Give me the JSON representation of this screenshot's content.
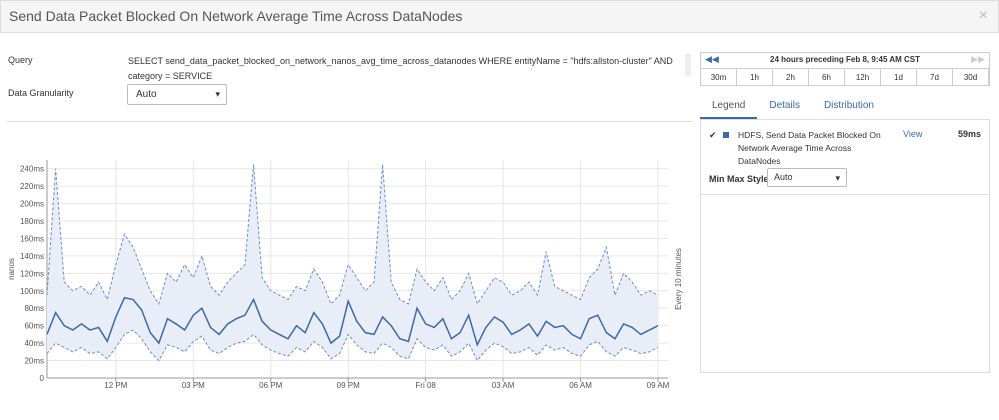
{
  "header": {
    "title": "Send Data Packet Blocked On Network Average Time Across DataNodes",
    "close": "×"
  },
  "query": {
    "label": "Query",
    "text": "SELECT send_data_packet_blocked_on_network_nanos_avg_time_across_datanodes WHERE entityName = \"hdfs:allston-cluster\" AND category = SERVICE"
  },
  "granularity": {
    "label": "Data Granularity",
    "value": "Auto"
  },
  "time_range": {
    "label": "24 hours preceding Feb 8, 9:45 AM CST",
    "buttons": [
      "30m",
      "1h",
      "2h",
      "6h",
      "12h",
      "1d",
      "7d",
      "30d"
    ]
  },
  "tabs": [
    "Legend",
    "Details",
    "Distribution"
  ],
  "legend": {
    "link": "View",
    "value": {
      "value": 59,
      "label": "59ms"
    },
    "style_label": "Min Max Style:",
    "style_value": "Auto"
  },
  "chart_data": {
    "type": "line",
    "y_label": "nanos",
    "y2_label": "Every 10 minutes",
    "categories": [
      null,
      null,
      null,
      null,
      null,
      null,
      null,
      null,
      "12 PM",
      null,
      null,
      null,
      null,
      null,
      null,
      null,
      null,
      "03 PM",
      null,
      null,
      null,
      null,
      null,
      null,
      null,
      null,
      "06 PM",
      null,
      null,
      null,
      null,
      null,
      null,
      null,
      null,
      "09 PM",
      null,
      null,
      null,
      null,
      null,
      null,
      null,
      null,
      "Fri 08",
      null,
      null,
      null,
      null,
      null,
      null,
      null,
      null,
      "03 AM",
      null,
      null,
      null,
      null,
      null,
      null,
      null,
      null,
      "06 AM",
      null,
      null,
      null,
      null,
      null,
      null,
      null,
      null,
      "09 AM"
    ],
    "series": [
      {
        "name": "HDFS, Send Data Packet Blocked On Network Average Time Across DataNodes",
        "color": "#3a6aa8",
        "values": [
          50,
          75,
          60,
          55,
          62,
          55,
          58,
          42,
          70,
          92,
          90,
          78,
          52,
          40,
          68,
          62,
          55,
          72,
          80,
          58,
          50,
          62,
          68,
          72,
          90,
          65,
          55,
          50,
          45,
          60,
          52,
          75,
          62,
          40,
          48,
          88,
          65,
          52,
          50,
          70,
          60,
          45,
          42,
          80,
          62,
          58,
          68,
          45,
          52,
          72,
          38,
          58,
          70,
          64,
          50,
          55,
          62,
          48,
          65,
          58,
          60,
          50,
          45,
          68,
          72,
          52,
          45,
          62,
          58,
          50,
          55,
          60
        ],
        "max": [
          95,
          240,
          110,
          100,
          105,
          95,
          110,
          90,
          130,
          165,
          150,
          125,
          100,
          85,
          120,
          110,
          130,
          115,
          140,
          105,
          95,
          110,
          120,
          130,
          245,
          115,
          100,
          95,
          90,
          105,
          100,
          125,
          110,
          85,
          95,
          130,
          115,
          100,
          110,
          245,
          110,
          90,
          85,
          125,
          110,
          100,
          115,
          90,
          100,
          120,
          85,
          100,
          115,
          110,
          95,
          100,
          110,
          95,
          145,
          105,
          100,
          95,
          90,
          115,
          125,
          150,
          95,
          120,
          110,
          95,
          100,
          95
        ],
        "min": [
          28,
          40,
          35,
          30,
          35,
          28,
          30,
          22,
          35,
          50,
          55,
          45,
          30,
          20,
          38,
          35,
          30,
          42,
          48,
          32,
          28,
          35,
          40,
          42,
          50,
          38,
          32,
          28,
          25,
          35,
          30,
          42,
          35,
          22,
          28,
          50,
          38,
          30,
          28,
          40,
          35,
          25,
          22,
          45,
          35,
          32,
          38,
          25,
          30,
          40,
          20,
          32,
          40,
          36,
          28,
          30,
          35,
          26,
          38,
          32,
          35,
          28,
          25,
          38,
          42,
          30,
          25,
          35,
          32,
          28,
          30,
          35
        ]
      }
    ],
    "ylim": [
      0,
      250
    ],
    "yticks": [
      0,
      {
        "value": 20,
        "label": "20ms"
      },
      {
        "value": 40,
        "label": "40ms"
      },
      {
        "value": 60,
        "label": "60ms"
      },
      {
        "value": 80,
        "label": "80ms"
      },
      {
        "value": 100,
        "label": "100ms"
      },
      {
        "value": 120,
        "label": "120ms"
      },
      {
        "value": 140,
        "label": "140ms"
      },
      {
        "value": 160,
        "label": "160ms"
      },
      {
        "value": 180,
        "label": "180ms"
      },
      {
        "value": 200,
        "label": "200ms"
      },
      {
        "value": 220,
        "label": "220ms"
      },
      {
        "value": 240,
        "label": "240ms"
      }
    ],
    "grid": true
  }
}
